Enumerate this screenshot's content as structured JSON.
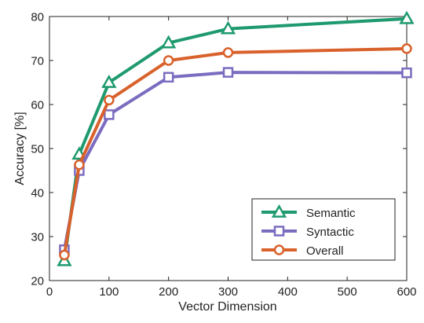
{
  "chart_data": {
    "type": "line",
    "title": "",
    "xlabel": "Vector Dimension",
    "ylabel": "Accuracy [%]",
    "xlim": [
      0,
      600
    ],
    "ylim": [
      20,
      80
    ],
    "xticks": [
      0,
      100,
      200,
      300,
      400,
      500,
      600
    ],
    "yticks": [
      20,
      30,
      40,
      50,
      60,
      70,
      80
    ],
    "grid": false,
    "legend_position": "bottom-right",
    "series": [
      {
        "name": "Semantic",
        "color": "#1e9a6e",
        "marker": "triangle",
        "x": [
          25,
          50,
          100,
          200,
          300,
          600
        ],
        "y": [
          24.5,
          48.7,
          65.0,
          74.0,
          77.2,
          79.5
        ]
      },
      {
        "name": "Syntactic",
        "color": "#7b6cc0",
        "marker": "square",
        "x": [
          25,
          50,
          100,
          200,
          300,
          600
        ],
        "y": [
          27.0,
          45.0,
          57.7,
          66.2,
          67.3,
          67.2
        ]
      },
      {
        "name": "Overall",
        "color": "#d9612b",
        "marker": "circle",
        "x": [
          25,
          50,
          100,
          200,
          300,
          600
        ],
        "y": [
          25.8,
          46.3,
          61.0,
          70.0,
          71.8,
          72.7
        ]
      }
    ]
  }
}
